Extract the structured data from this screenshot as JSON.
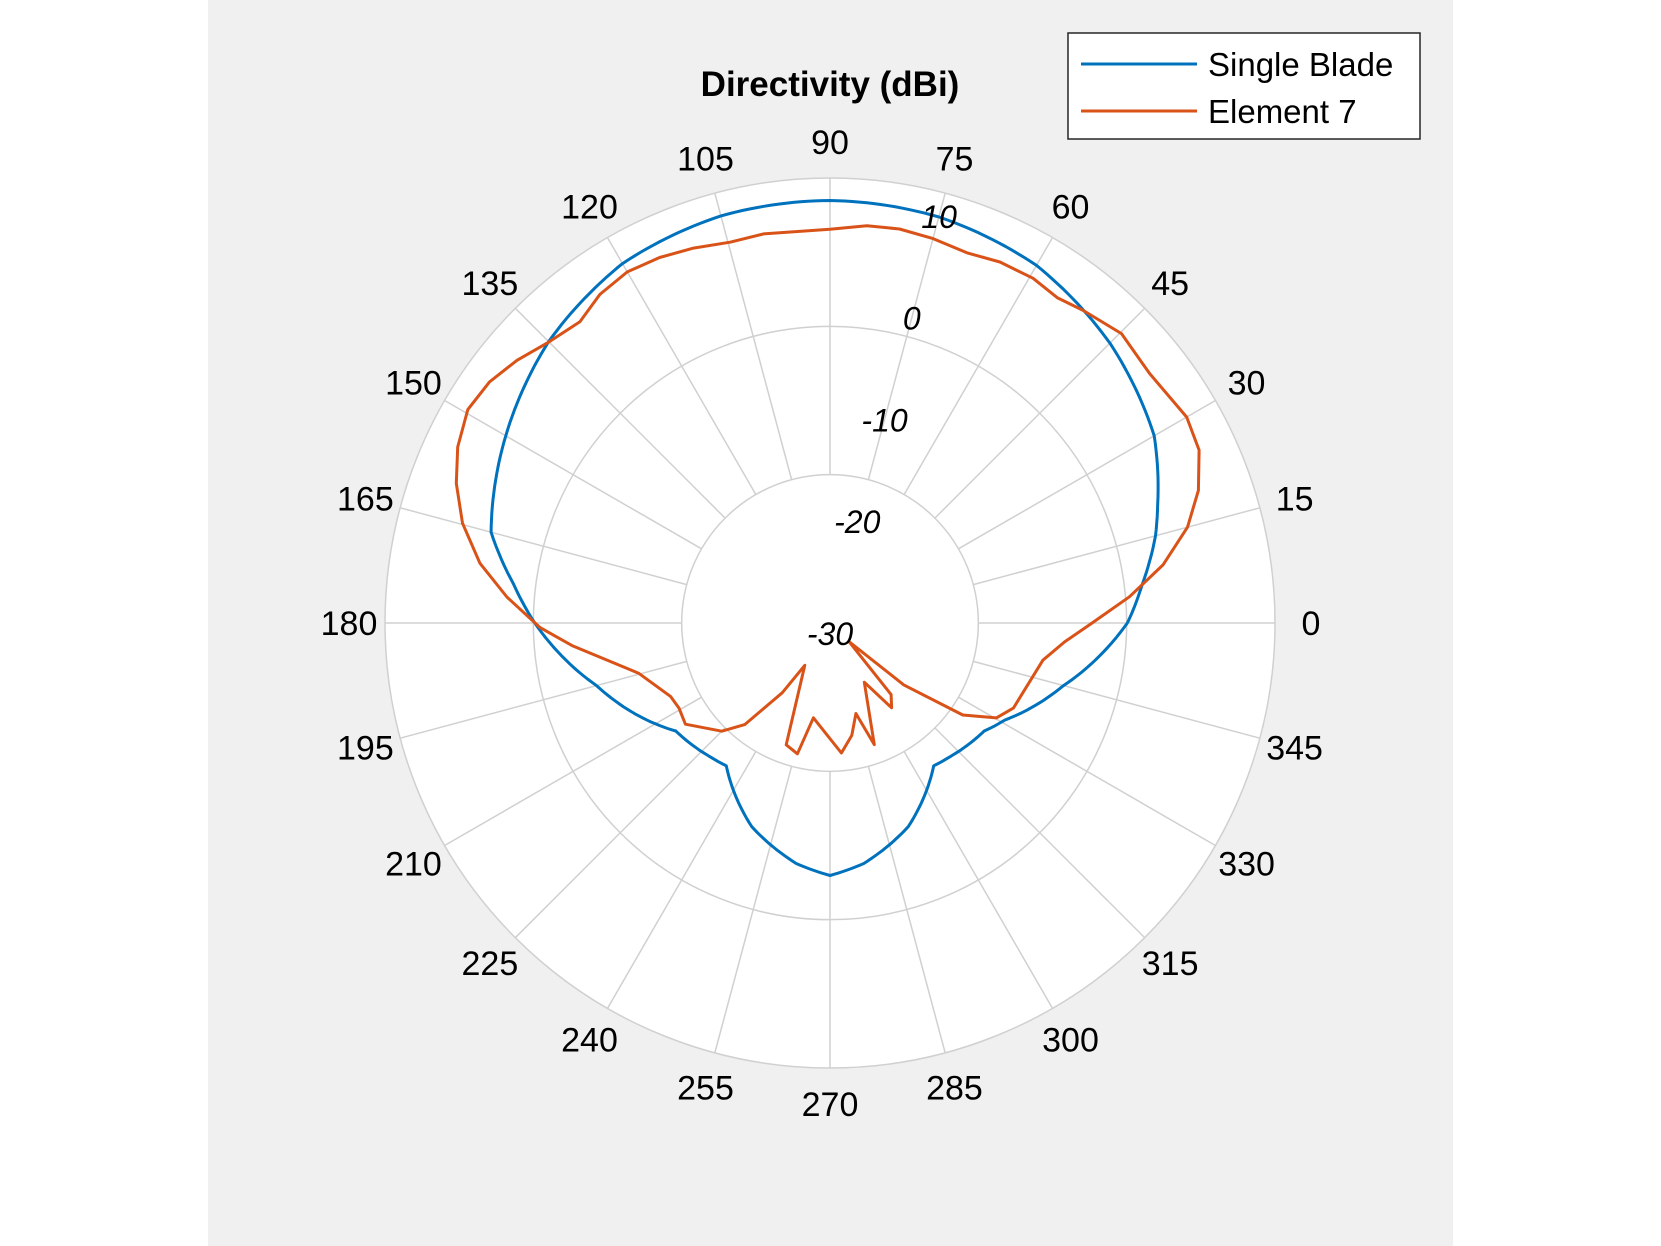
{
  "chart_data": {
    "type": "line",
    "subtype": "polar",
    "title": "Directivity (dBi)",
    "theta_unit": "degrees",
    "r_unit": "dBi",
    "rlim": [
      -30,
      11.6
    ],
    "r_tick_labels": [
      "-30",
      "-20",
      "-10",
      "0",
      "10"
    ],
    "r_tick_values": [
      -30,
      -20,
      -10,
      0,
      10
    ],
    "theta_tick_labels": [
      "0",
      "15",
      "30",
      "45",
      "60",
      "75",
      "90",
      "105",
      "120",
      "135",
      "150",
      "165",
      "180",
      "195",
      "210",
      "225",
      "240",
      "255",
      "270",
      "285",
      "300",
      "315",
      "330",
      "345"
    ],
    "grid": true,
    "legend_position": "top-right",
    "series": [
      {
        "name": "Single Blade",
        "color": "#0072BD",
        "theta": [
          0,
          7,
          15,
          20,
          30,
          45,
          60,
          75,
          90,
          105,
          120,
          135,
          150,
          165,
          173,
          180,
          195,
          215,
          228,
          234,
          249,
          262,
          270,
          278,
          291,
          306,
          312,
          325,
          331,
          345
        ],
        "r": [
          -2.2,
          -0.6,
          1.5,
          2.6,
          5.0,
          7.0,
          8.6,
          9.3,
          9.5,
          9.4,
          8.8,
          7.2,
          5.0,
          2.8,
          -0.2,
          -2.4,
          -7.4,
          -12.4,
          -13.2,
          -13.5,
          -9.6,
          -7.3,
          -6.4,
          -7.3,
          -9.6,
          -13.5,
          -13.2,
          -12.4,
          -11.3,
          -7.4
        ]
      },
      {
        "name": "Element 7",
        "color": "#D95319",
        "theta": [
          0,
          5,
          9.9,
          15,
          19.8,
          25.1,
          30,
          38,
          44.8,
          51,
          55,
          59.5,
          64.8,
          69.7,
          75,
          80,
          84.7,
          90,
          99.7,
          104.7,
          110,
          115,
          120,
          125,
          129.7,
          135.3,
          140,
          144.7,
          149.5,
          154.7,
          159.5,
          164.8,
          170.3,
          175.4,
          180.9,
          185,
          194.7,
          204.8,
          209.4,
          215,
          225,
          230,
          235.6,
          239.2,
          250.2,
          256,
          260.1,
          275,
          281,
          286,
          290,
          300.1,
          306,
          310.5,
          315.5,
          320,
          325.3,
          330.3,
          335.1,
          350.1,
          355.4
        ],
        "r": [
          -5.5,
          -1.9,
          1.6,
          4.6,
          6.6,
          8.1,
          8.5,
          7.9,
          8.4,
          7.6,
          7.1,
          7.4,
          7.3,
          6.9,
          7.2,
          7.4,
          7.3,
          6.8,
          6.9,
          6.8,
          7.3,
          7.7,
          7.9,
          7.5,
          6.6,
          7.2,
          8.2,
          9.0,
          9.3,
          8.5,
          7.3,
          5.6,
          3.2,
          0.3,
          -2.9,
          -5.8,
          -11.5,
          -13.6,
          -13.8,
          -13.5,
          -15.7,
          -17.6,
          -22.1,
          -25.4,
          -17.9,
          -17.4,
          -21.0,
          -17.8,
          -19.3,
          -21.2,
          -17.9,
          -23.6,
          -20.2,
          -21.2,
          -27.5,
          -21.0,
          -14.9,
          -12.1,
          -11.1,
          -9.8,
          -8.0
        ]
      }
    ]
  }
}
